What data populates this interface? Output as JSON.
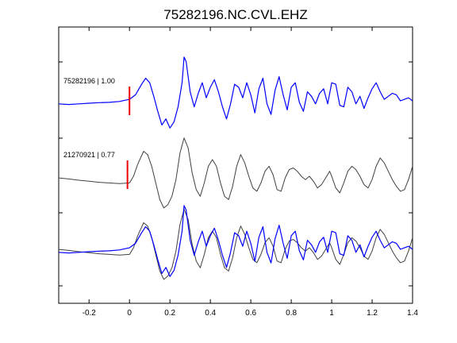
{
  "chart_data": {
    "type": "line",
    "title": "75282196.NC.CVL.EHZ",
    "xlabel": "",
    "ylabel": "",
    "xlim": [
      -0.35,
      1.4
    ],
    "x_ticks": [
      -0.2,
      0,
      0.2,
      0.4,
      0.6,
      0.8,
      1,
      1.2,
      1.4
    ],
    "x_tick_labels": [
      "-0.2",
      "0",
      "0.2",
      "0.4",
      "0.6",
      "0.8",
      "1",
      "1.2",
      "1.4"
    ],
    "grid": false,
    "traces": [
      {
        "label": "75282196 | 1.00",
        "color": "#0000ff",
        "pick_time": 0.0,
        "points": [
          [
            -0.35,
            -0.1
          ],
          [
            -0.3,
            -0.12
          ],
          [
            -0.25,
            -0.1
          ],
          [
            -0.2,
            -0.08
          ],
          [
            -0.15,
            -0.06
          ],
          [
            -0.1,
            -0.05
          ],
          [
            -0.05,
            -0.02
          ],
          [
            0.0,
            0.05
          ],
          [
            0.03,
            0.2
          ],
          [
            0.06,
            0.55
          ],
          [
            0.08,
            0.75
          ],
          [
            0.1,
            0.6
          ],
          [
            0.12,
            0.15
          ],
          [
            0.14,
            -0.35
          ],
          [
            0.16,
            -0.8
          ],
          [
            0.18,
            -0.6
          ],
          [
            0.2,
            -0.9
          ],
          [
            0.22,
            -0.7
          ],
          [
            0.24,
            -0.2
          ],
          [
            0.26,
            0.6
          ],
          [
            0.27,
            1.45
          ],
          [
            0.28,
            1.3
          ],
          [
            0.3,
            0.3
          ],
          [
            0.32,
            -0.2
          ],
          [
            0.34,
            0.25
          ],
          [
            0.36,
            0.6
          ],
          [
            0.38,
            0.1
          ],
          [
            0.4,
            0.45
          ],
          [
            0.42,
            0.7
          ],
          [
            0.44,
            0.3
          ],
          [
            0.46,
            -0.2
          ],
          [
            0.48,
            -0.6
          ],
          [
            0.5,
            -0.1
          ],
          [
            0.52,
            0.55
          ],
          [
            0.54,
            0.45
          ],
          [
            0.56,
            0.1
          ],
          [
            0.58,
            0.6
          ],
          [
            0.6,
            0.2
          ],
          [
            0.62,
            -0.4
          ],
          [
            0.64,
            0.4
          ],
          [
            0.66,
            0.75
          ],
          [
            0.68,
            -0.1
          ],
          [
            0.7,
            -0.45
          ],
          [
            0.72,
            0.35
          ],
          [
            0.74,
            0.8
          ],
          [
            0.76,
            0.2
          ],
          [
            0.78,
            -0.3
          ],
          [
            0.8,
            0.45
          ],
          [
            0.82,
            0.6
          ],
          [
            0.84,
            -0.05
          ],
          [
            0.86,
            -0.35
          ],
          [
            0.88,
            0.3
          ],
          [
            0.9,
            0.15
          ],
          [
            0.92,
            -0.1
          ],
          [
            0.94,
            0.25
          ],
          [
            0.96,
            0.4
          ],
          [
            0.98,
            -0.1
          ],
          [
            1.0,
            0.6
          ],
          [
            1.02,
            0.55
          ],
          [
            1.04,
            -0.15
          ],
          [
            1.06,
            -0.2
          ],
          [
            1.08,
            0.45
          ],
          [
            1.1,
            0.3
          ],
          [
            1.12,
            -0.1
          ],
          [
            1.14,
            0.15
          ],
          [
            1.16,
            -0.25
          ],
          [
            1.18,
            0.1
          ],
          [
            1.2,
            0.4
          ],
          [
            1.22,
            0.6
          ],
          [
            1.24,
            0.3
          ],
          [
            1.26,
            0.05
          ],
          [
            1.28,
            0.15
          ],
          [
            1.3,
            0.25
          ],
          [
            1.32,
            0.2
          ],
          [
            1.34,
            0.0
          ],
          [
            1.36,
            0.05
          ],
          [
            1.38,
            0.1
          ],
          [
            1.4,
            0.0
          ]
        ]
      },
      {
        "label": "21270921 | 0.77",
        "color": "#404040",
        "pick_time": -0.01,
        "points": [
          [
            -0.35,
            -0.05
          ],
          [
            -0.3,
            -0.08
          ],
          [
            -0.25,
            -0.12
          ],
          [
            -0.2,
            -0.15
          ],
          [
            -0.15,
            -0.18
          ],
          [
            -0.1,
            -0.2
          ],
          [
            -0.05,
            -0.22
          ],
          [
            0.0,
            -0.2
          ],
          [
            0.02,
            0.0
          ],
          [
            0.04,
            0.35
          ],
          [
            0.07,
            0.75
          ],
          [
            0.09,
            0.65
          ],
          [
            0.11,
            0.3
          ],
          [
            0.13,
            -0.2
          ],
          [
            0.15,
            -0.7
          ],
          [
            0.17,
            -0.95
          ],
          [
            0.19,
            -0.85
          ],
          [
            0.21,
            -0.6
          ],
          [
            0.23,
            -0.1
          ],
          [
            0.25,
            0.7
          ],
          [
            0.27,
            1.15
          ],
          [
            0.29,
            0.85
          ],
          [
            0.31,
            0.1
          ],
          [
            0.33,
            -0.4
          ],
          [
            0.35,
            -0.6
          ],
          [
            0.37,
            -0.2
          ],
          [
            0.39,
            0.3
          ],
          [
            0.41,
            0.5
          ],
          [
            0.43,
            0.3
          ],
          [
            0.45,
            -0.2
          ],
          [
            0.47,
            -0.6
          ],
          [
            0.49,
            -0.7
          ],
          [
            0.51,
            -0.3
          ],
          [
            0.53,
            0.3
          ],
          [
            0.55,
            0.65
          ],
          [
            0.57,
            0.4
          ],
          [
            0.59,
            0.0
          ],
          [
            0.61,
            -0.35
          ],
          [
            0.63,
            -0.45
          ],
          [
            0.65,
            -0.2
          ],
          [
            0.67,
            0.15
          ],
          [
            0.69,
            0.3
          ],
          [
            0.71,
            0.05
          ],
          [
            0.73,
            -0.4
          ],
          [
            0.75,
            -0.45
          ],
          [
            0.77,
            -0.05
          ],
          [
            0.79,
            0.2
          ],
          [
            0.81,
            0.25
          ],
          [
            0.83,
            0.15
          ],
          [
            0.85,
            0.0
          ],
          [
            0.87,
            -0.1
          ],
          [
            0.89,
            0.0
          ],
          [
            0.91,
            -0.15
          ],
          [
            0.93,
            -0.35
          ],
          [
            0.95,
            -0.25
          ],
          [
            0.97,
            -0.05
          ],
          [
            0.99,
            0.15
          ],
          [
            1.0,
            0.0
          ],
          [
            1.02,
            -0.35
          ],
          [
            1.04,
            -0.5
          ],
          [
            1.06,
            -0.2
          ],
          [
            1.08,
            0.15
          ],
          [
            1.1,
            0.3
          ],
          [
            1.12,
            0.2
          ],
          [
            1.14,
            0.0
          ],
          [
            1.16,
            -0.25
          ],
          [
            1.18,
            -0.35
          ],
          [
            1.2,
            -0.1
          ],
          [
            1.22,
            0.3
          ],
          [
            1.24,
            0.55
          ],
          [
            1.26,
            0.4
          ],
          [
            1.28,
            0.15
          ],
          [
            1.3,
            -0.1
          ],
          [
            1.32,
            -0.3
          ],
          [
            1.34,
            -0.45
          ],
          [
            1.36,
            -0.4
          ],
          [
            1.38,
            -0.1
          ],
          [
            1.4,
            0.3
          ]
        ]
      }
    ],
    "overlay": {
      "description_of_series": [
        "trace 1 (blue) overlaid on trace 2 (gray)"
      ],
      "series_indices": [
        0,
        1
      ]
    }
  },
  "colors": {
    "pick_marker": "#ee0000",
    "axes": "#000000",
    "background": "#ffffff"
  }
}
